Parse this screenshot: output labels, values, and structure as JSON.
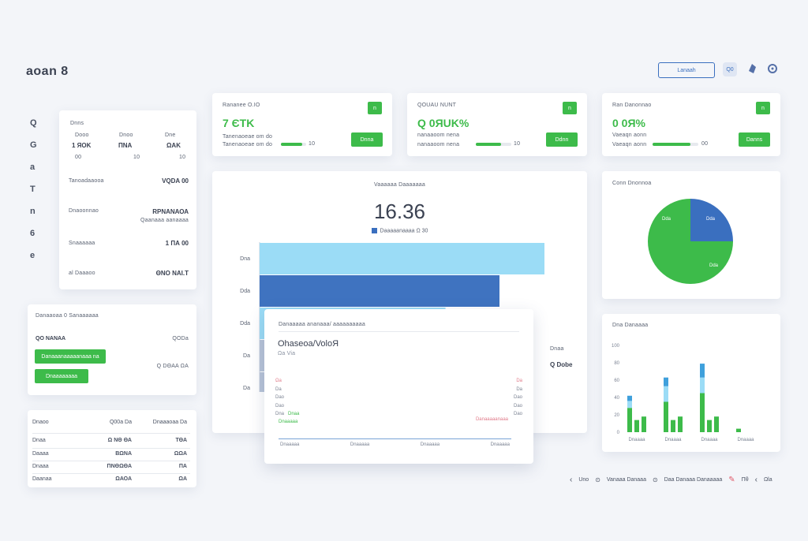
{
  "header": {
    "logo": "aoan 8",
    "action_button": "Lanaah",
    "toolbar_icon_1": "Q0"
  },
  "sidebar_icons": [
    "Q",
    "G",
    "a",
    "T",
    "n",
    "6",
    "e"
  ],
  "kpis": [
    {
      "label": "Rananee O.IO",
      "value": "7 ЄTK",
      "badge": "n",
      "sub": "Tanenaoeae om do",
      "progress": 0.85,
      "suffix": "10",
      "button": "Dnna"
    },
    {
      "label": "QOUAU NUNT",
      "value": "Q 0ЯUK%",
      "badge": "n",
      "sub": "nanaaoom nena",
      "progress": 0.72,
      "suffix": "10",
      "button": "Ddnn"
    },
    {
      "label": "Ran Danonnao",
      "value": "0 0Я%",
      "badge": "n",
      "sub": "Vaeaqn aonn",
      "progress": 0.82,
      "suffix": "00",
      "button": "Danns"
    }
  ],
  "stats_panel": {
    "title": "Dnns",
    "cols": [
      "Dooo",
      "Dnoo",
      "Dne"
    ],
    "values": [
      "1 ЯOK",
      "ΠΝΑ",
      "ΩΑΚ"
    ],
    "subs": [
      "00",
      "10",
      "10"
    ],
    "rows": [
      {
        "label": "Tanoadaaooa",
        "value": "VQDA 00",
        "sub": ""
      },
      {
        "label": "Dnaoonnao",
        "value": "RΡΝΑΝΑΟΑ",
        "sub": "Qaanaaa aanaaaa"
      },
      {
        "label": "Snaaaaaa",
        "value": "1 ΠΑ 00",
        "sub": ""
      },
      {
        "label": "al Daaaoo",
        "value": "ΘΝΟ ΝΑΙ.Τ",
        "sub": ""
      }
    ]
  },
  "actions_panel": {
    "title": "Danaaoaa 0 Sanaaaaaa",
    "label": "QO NANAA",
    "label_right": "QODa",
    "button1": "Danaaanaaaaanaaa na",
    "button2": "Dnaaaaaaaa",
    "meta": "Q DΘΑΑ ΩΑ"
  },
  "table": {
    "headers": [
      "Dnaoo",
      "Q00a Da",
      "Dnaaaoaa Da"
    ],
    "rows": [
      [
        "Dnaa",
        "Ω ΝΘ ΘΑ",
        "ΤΘΑ"
      ],
      [
        "Daaaa",
        "ΒΩΝΑ",
        "ΩΩΑ"
      ],
      [
        "Dnaaa",
        "ΠΝΘΩΘΑ",
        "ΠΑ"
      ],
      [
        "Daanaa",
        "ΩΑΟΑ",
        "ΩΑ"
      ]
    ]
  },
  "main_chart": {
    "title": "Vaaaaaa Daaaaaaa",
    "big_value": "16.36",
    "legend": "Daaaaanaaaa Ω 30",
    "right_label": "Q Dobe",
    "right_sub": "Dnaa",
    "chart_data": {
      "type": "bar",
      "orientation": "horizontal",
      "categories": [
        "Dna",
        "Dda",
        "Dda",
        "Da",
        "Da"
      ],
      "values": [
        95,
        80,
        62,
        50,
        42
      ],
      "xlim": [
        0,
        100
      ],
      "colors": [
        "#9bdcf6",
        "#3f73c0",
        "#9bdcf6",
        "#b8c4d8",
        "#b8c4d8"
      ]
    }
  },
  "overlay": {
    "header": "Danaaaaa ananaaa/ aaaaaaaaaa",
    "title": "Ohaseoa/VoloЯ",
    "subtitle": "Ωa Via",
    "left_ticks": [
      "Ωa",
      "Da",
      "Dao",
      "Dao",
      "Dna"
    ],
    "right_ticks": [
      "Da",
      "Da",
      "Dao",
      "Dao",
      "Dao"
    ],
    "left_note": "Dnaa",
    "left_note2": "Dnaaaaa",
    "right_note": "Danaaaaanaaa",
    "x_labels": [
      "Dnaaaaa",
      "Dnaaaaa",
      "Dnaaaaa",
      "Dnaaaaa"
    ]
  },
  "pie": {
    "title": "Conn Dnonnoa",
    "chart_data": {
      "type": "pie",
      "slices": [
        {
          "label": "Oao",
          "value": 25,
          "color": "#3a6fbf"
        },
        {
          "label": "Dda",
          "value": 75,
          "color": "#3dbb4a"
        }
      ],
      "inner_labels": [
        "Dda",
        "Dda",
        "Dda"
      ]
    }
  },
  "stacked": {
    "title": "Dna Danaaaa",
    "chart_data": {
      "type": "bar",
      "stacked": true,
      "y_ticks": [
        "0",
        "20",
        "40",
        "60",
        "80",
        "100"
      ],
      "categories": [
        "Dnaaaa",
        "Dnaaaa",
        "Dnaaaa",
        "Dnaaaa"
      ],
      "groups": [
        [
          [
            28,
            8,
            6
          ],
          [
            14,
            0,
            0
          ],
          [
            18,
            0,
            0
          ]
        ],
        [
          [
            35,
            18,
            10
          ],
          [
            14,
            0,
            0
          ],
          [
            18,
            0,
            0
          ]
        ],
        [
          [
            45,
            18,
            16
          ],
          [
            14,
            0,
            0
          ],
          [
            18,
            0,
            0
          ]
        ],
        [
          [
            4,
            0,
            0
          ],
          [
            0,
            0,
            0
          ],
          [
            0,
            0,
            0
          ]
        ]
      ],
      "colors": [
        "#3dbb4a",
        "#9bdcf6",
        "#3fa0dc"
      ]
    }
  },
  "footer": {
    "items": [
      "Uno",
      "Vanaaa Danaaa",
      "Daa Danaaa Danaaaaa",
      "Πθ",
      "Ωla"
    ]
  }
}
